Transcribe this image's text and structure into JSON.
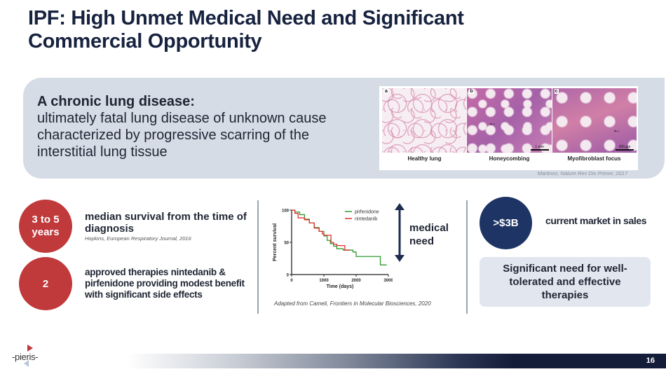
{
  "slide": {
    "title": "IPF: High Unmet Medical Need and Significant Commercial Opportunity",
    "page_number": "16",
    "colors": {
      "title": "#17223f",
      "red_circle": "#c0393b",
      "navy_circle": "#1d3465",
      "hero_bg": "#d6dce6",
      "box_bg": "#e1e6ef",
      "pirfenidone": "#2e9b2e",
      "nintedanib": "#e0302f"
    }
  },
  "hero": {
    "heading": "A chronic lung disease:",
    "body": "ultimately fatal lung disease of unknown cause characterized by progressive scarring of the interstitial lung tissue",
    "image": {
      "panels": [
        {
          "letter": "a",
          "caption": "Healthy lung"
        },
        {
          "letter": "b",
          "caption": "Honeycombing",
          "scale": "1 mm"
        },
        {
          "letter": "c",
          "caption": "Myofibroblast focus",
          "scale": "200 µm"
        }
      ],
      "citation": "Martinez, Nature Rev Dis Primer, 2017"
    }
  },
  "stats": [
    {
      "badge": "3 to 5 years",
      "text": "median survival from the time of diagnosis",
      "citation": "Hopkins, European Respiratory Journal, 2016"
    },
    {
      "badge": "2",
      "text": "approved therapies nintedanib & pirfenidone providing modest benefit with significant side effects"
    }
  ],
  "medical_need": {
    "label": "medical need"
  },
  "market": {
    "badge": ">$3B",
    "text": "current market in sales",
    "callout": "Significant need for well-tolerated and effective therapies"
  },
  "chart_citation": "Adapted from Cameli, Frontiers in Molecular Biosciences, 2020",
  "chart_data": {
    "type": "line",
    "title": "",
    "xlabel": "Time (days)",
    "ylabel": "Percent survival",
    "xlim": [
      0,
      3000
    ],
    "ylim": [
      0,
      100
    ],
    "xticks": [
      0,
      1000,
      2000,
      3000
    ],
    "yticks": [
      0,
      50,
      100
    ],
    "legend": [
      "pirfenidone",
      "nintedanib"
    ],
    "legend_position": "top-right",
    "series": [
      {
        "name": "pirfenidone",
        "color": "#2e9b2e",
        "x": [
          0,
          100,
          250,
          400,
          550,
          700,
          850,
          1000,
          1100,
          1200,
          1300,
          1400,
          1600,
          1900,
          2000,
          2750,
          2950
        ],
        "y": [
          100,
          97,
          93,
          86,
          80,
          73,
          67,
          60,
          53,
          48,
          44,
          40,
          38,
          35,
          28,
          15,
          15
        ]
      },
      {
        "name": "nintedanib",
        "color": "#e0302f",
        "x": [
          0,
          100,
          200,
          400,
          550,
          700,
          850,
          950,
          1000,
          1180,
          1220,
          1300,
          1400,
          1650,
          1800
        ],
        "y": [
          100,
          95,
          88,
          85,
          80,
          72,
          67,
          63,
          61,
          61,
          50,
          47,
          45,
          38,
          38
        ]
      }
    ]
  },
  "footer": {
    "logo": "-pieris-"
  }
}
